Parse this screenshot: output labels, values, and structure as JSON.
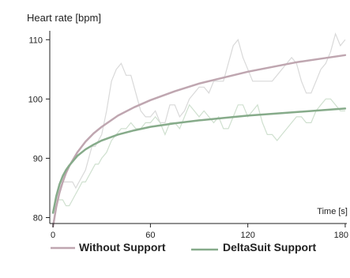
{
  "chart_data": {
    "type": "line",
    "title": "",
    "ylabel": "Heart rate  [bpm]",
    "xlabel": "Time [s]",
    "xlim": [
      -2,
      181
    ],
    "ylim": [
      79,
      111.5
    ],
    "xticks": [
      0,
      60,
      120,
      180
    ],
    "xtick_labels": [
      "0",
      "60",
      "120",
      "180"
    ],
    "yticks": [
      80,
      90,
      100,
      110
    ],
    "ytick_labels": [
      "80",
      "90",
      "100",
      "110"
    ],
    "grid": false,
    "legend_position": "bottom",
    "series": [
      {
        "name": "Without Support",
        "color": "#bfa6b0",
        "fit": {
          "x": [
            0,
            2,
            4,
            6,
            8,
            10,
            15,
            20,
            25,
            30,
            40,
            50,
            60,
            75,
            90,
            105,
            120,
            135,
            150,
            165,
            180
          ],
          "y": [
            78.5,
            81.8,
            84.2,
            86.0,
            87.5,
            88.7,
            91.0,
            92.8,
            94.2,
            95.3,
            97.2,
            98.6,
            99.8,
            101.3,
            102.6,
            103.6,
            104.6,
            105.4,
            106.2,
            106.8,
            107.4
          ]
        },
        "raw": {
          "x": [
            0,
            2,
            4,
            6,
            8,
            10,
            12,
            14,
            16,
            18,
            20,
            22,
            24,
            26,
            28,
            30,
            33,
            36,
            39,
            42,
            45,
            48,
            51,
            54,
            57,
            60,
            63,
            66,
            69,
            72,
            75,
            78,
            81,
            84,
            87,
            90,
            93,
            96,
            99,
            102,
            105,
            108,
            111,
            114,
            117,
            120,
            123,
            126,
            129,
            132,
            135,
            138,
            141,
            144,
            147,
            150,
            153,
            156,
            159,
            162,
            165,
            168,
            171,
            174,
            177,
            180
          ],
          "y": [
            81,
            83,
            85,
            86,
            86,
            86,
            86,
            85,
            86,
            87,
            88,
            90,
            92,
            92,
            93,
            94,
            98,
            103,
            105,
            106,
            104,
            104,
            101,
            98,
            97,
            97,
            98,
            96,
            96,
            99,
            99,
            97,
            98,
            100,
            101,
            102,
            102,
            101,
            103,
            103,
            103,
            106,
            109,
            110,
            107,
            105,
            103,
            103,
            103,
            103,
            103,
            104,
            105,
            106,
            107,
            106,
            103,
            101,
            101,
            103,
            105,
            106,
            108,
            111,
            109,
            110
          ]
        }
      },
      {
        "name": "DeltaSuit Support",
        "color": "#86ab8a",
        "fit": {
          "x": [
            0,
            2,
            4,
            6,
            8,
            10,
            15,
            20,
            25,
            30,
            40,
            50,
            60,
            75,
            90,
            105,
            120,
            135,
            150,
            165,
            180
          ],
          "y": [
            80.8,
            83.6,
            85.6,
            87.0,
            88.0,
            88.8,
            90.4,
            91.5,
            92.3,
            93.0,
            94.0,
            94.7,
            95.3,
            95.9,
            96.4,
            96.8,
            97.2,
            97.5,
            97.8,
            98.1,
            98.4
          ]
        },
        "raw": {
          "x": [
            0,
            2,
            4,
            6,
            8,
            10,
            12,
            14,
            16,
            18,
            20,
            22,
            24,
            26,
            28,
            30,
            33,
            36,
            39,
            42,
            45,
            48,
            51,
            54,
            57,
            60,
            63,
            66,
            69,
            72,
            75,
            78,
            81,
            84,
            87,
            90,
            93,
            96,
            99,
            102,
            105,
            108,
            111,
            114,
            117,
            120,
            123,
            126,
            129,
            132,
            135,
            138,
            141,
            144,
            147,
            150,
            153,
            156,
            159,
            162,
            165,
            168,
            171,
            174,
            177,
            180
          ],
          "y": [
            81,
            83,
            83,
            83,
            82,
            82,
            83,
            84,
            85,
            86,
            86,
            87,
            88,
            89,
            89,
            90,
            91,
            93,
            94,
            95,
            95,
            96,
            95,
            95,
            96,
            96,
            97,
            96,
            94,
            96,
            96,
            95,
            97,
            99,
            98,
            97,
            98,
            97,
            96,
            97,
            95,
            95,
            97,
            99,
            99,
            97,
            98,
            99,
            96,
            94,
            94,
            93,
            94,
            95,
            96,
            97,
            97,
            96,
            96,
            98,
            99,
            100,
            100,
            99,
            98,
            98
          ]
        }
      }
    ]
  },
  "colors": {
    "axis": "#222222",
    "without_support_raw": "#d9d9d9",
    "deltasuit_raw": "#cfe0cf"
  }
}
